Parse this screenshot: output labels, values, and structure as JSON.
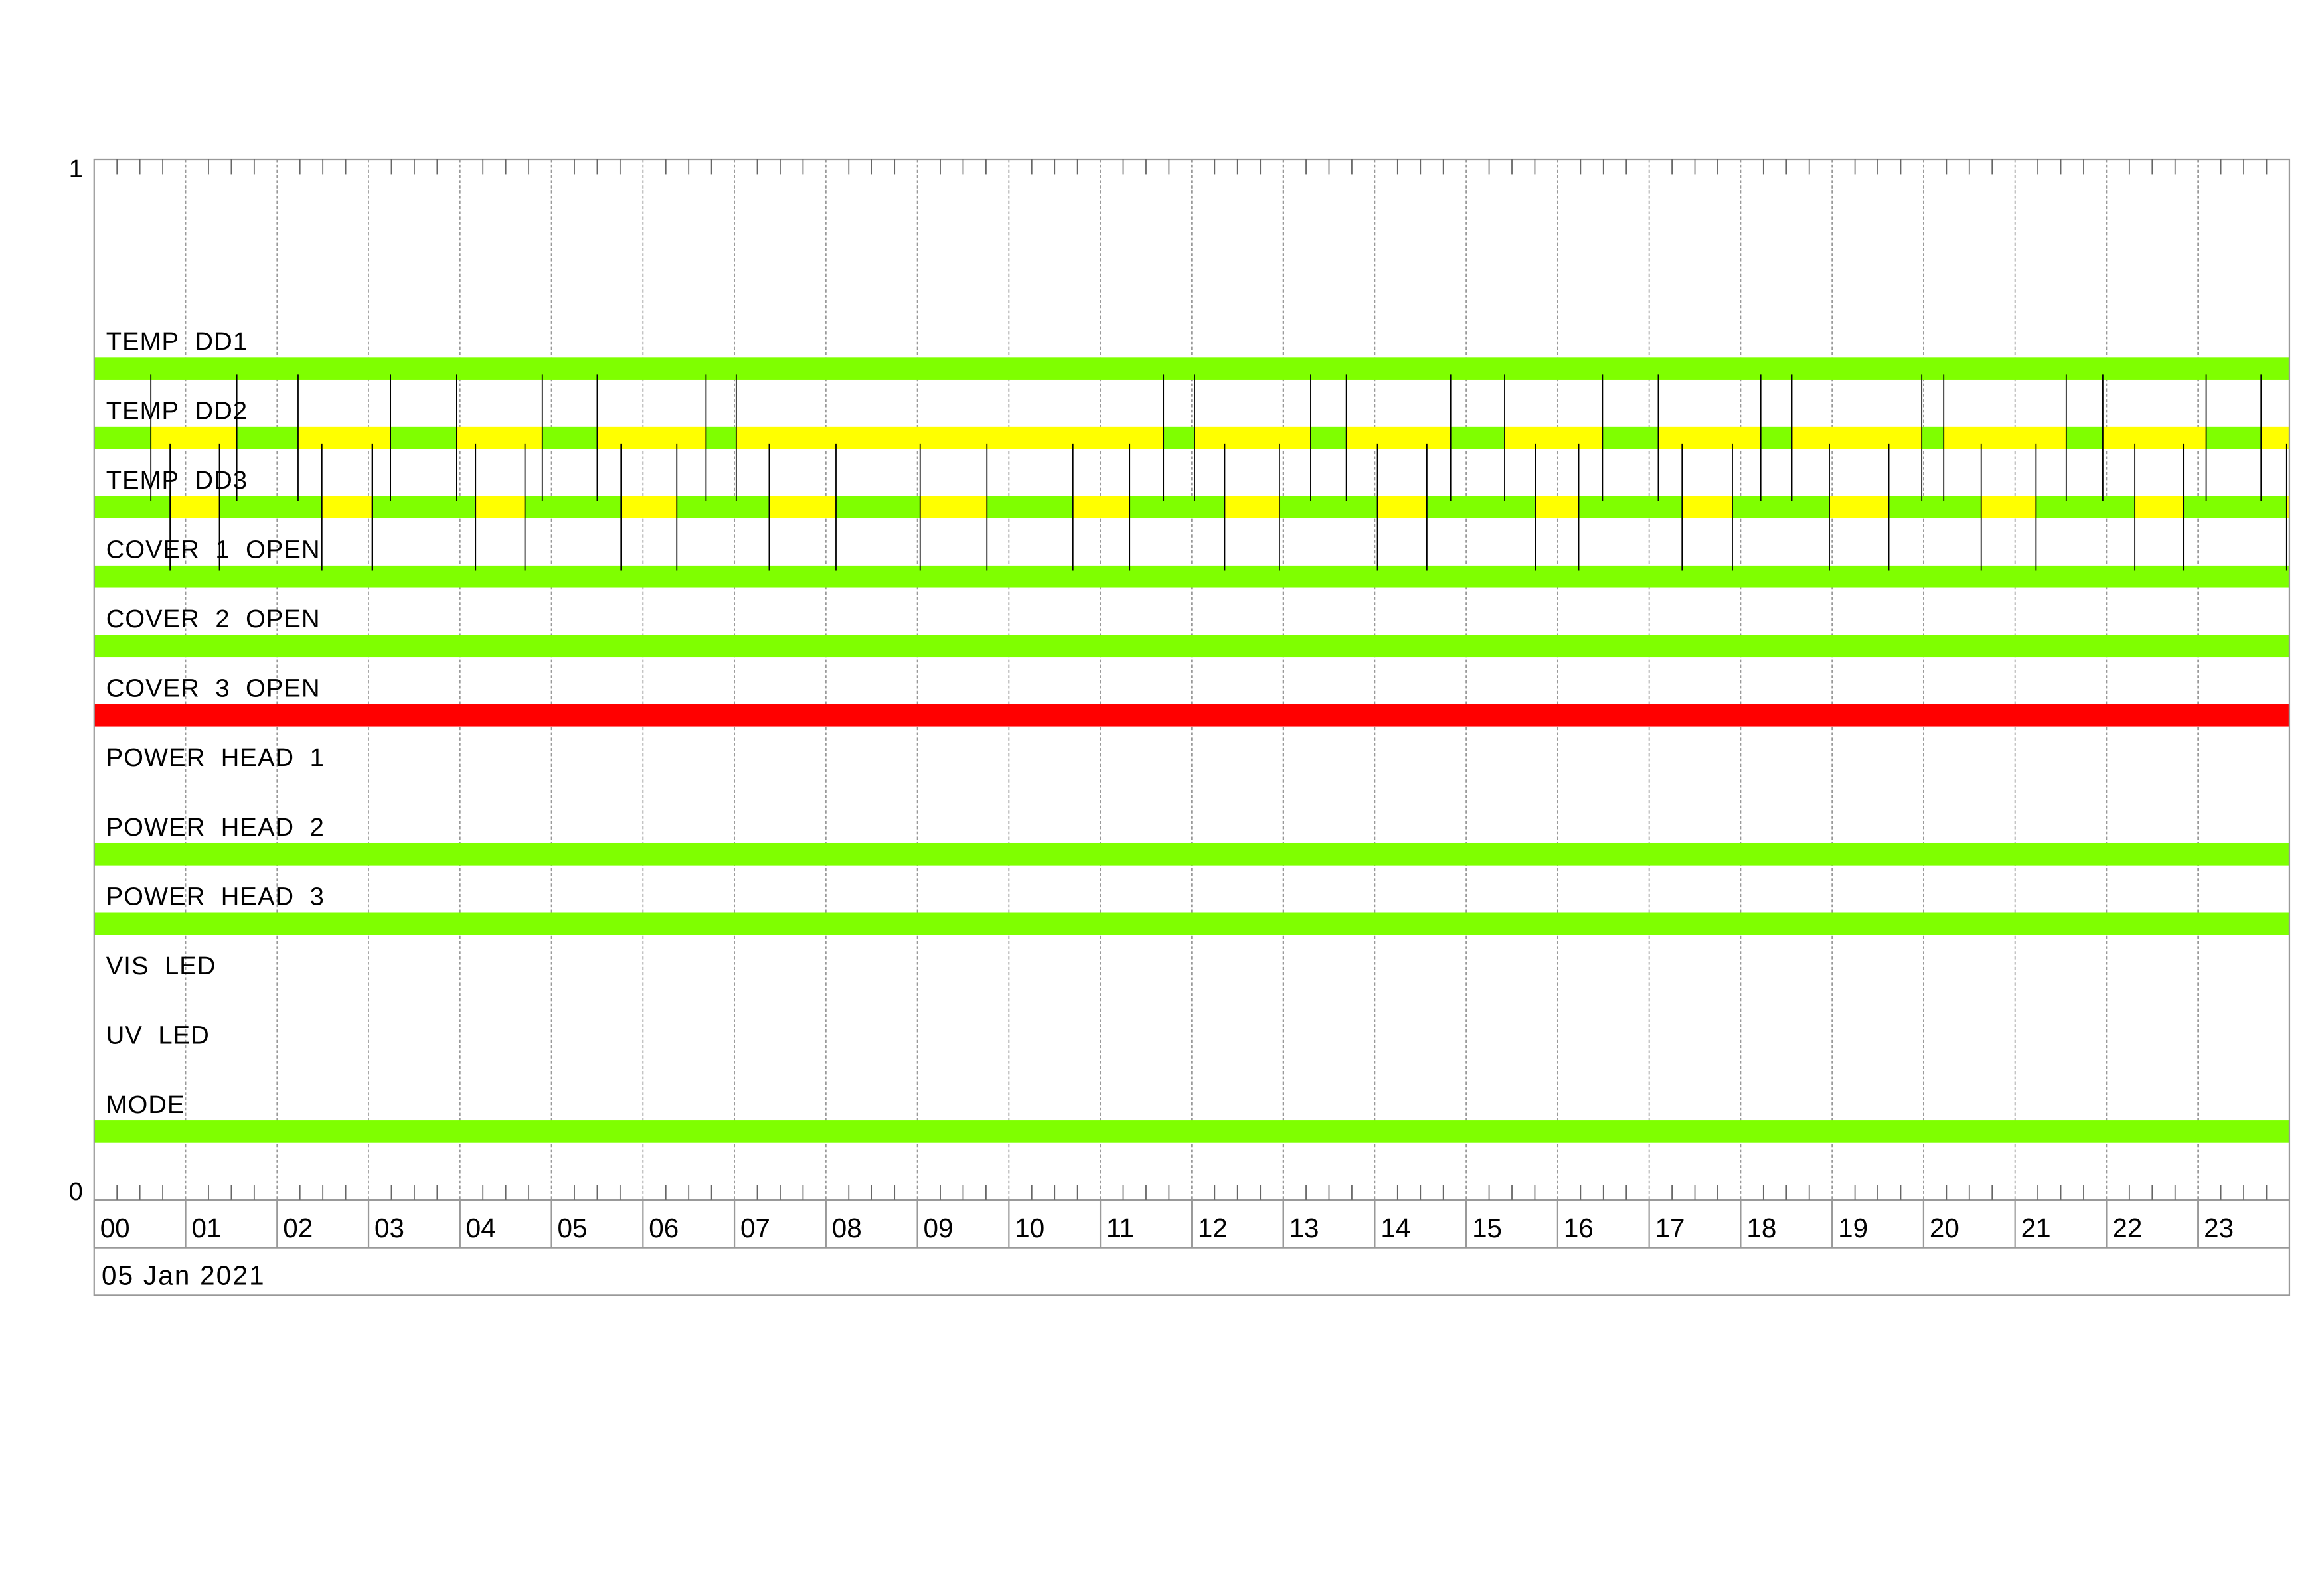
{
  "chart_data": {
    "type": "timeline",
    "y_axis": {
      "top_label": "1",
      "bottom_label": "0"
    },
    "x_axis": {
      "unit": "hour",
      "range": [
        0,
        24
      ],
      "tick_labels": [
        "00",
        "01",
        "02",
        "03",
        "04",
        "05",
        "06",
        "07",
        "08",
        "09",
        "10",
        "11",
        "12",
        "13",
        "14",
        "15",
        "16",
        "17",
        "18",
        "19",
        "20",
        "21",
        "22",
        "23"
      ],
      "minor_ticks_per_hour": 4,
      "date_label": "05 Jan 2021"
    },
    "grid": true,
    "colors": {
      "green": "#7fff00",
      "yellow": "#ffff00",
      "red": "#ff0000",
      "grid": "#999999"
    },
    "rows": [
      {
        "name": "TEMP DD1",
        "segments": [
          {
            "start": 0,
            "end": 24,
            "state": "green"
          }
        ]
      },
      {
        "name": "TEMP DD2",
        "transition_marks": true,
        "segments": [
          {
            "start": 0,
            "end": 0.62,
            "state": "green"
          },
          {
            "start": 0.62,
            "end": 1.56,
            "state": "yellow"
          },
          {
            "start": 1.56,
            "end": 2.23,
            "state": "green"
          },
          {
            "start": 2.23,
            "end": 3.24,
            "state": "yellow"
          },
          {
            "start": 3.24,
            "end": 3.96,
            "state": "green"
          },
          {
            "start": 3.96,
            "end": 4.9,
            "state": "yellow"
          },
          {
            "start": 4.9,
            "end": 5.5,
            "state": "green"
          },
          {
            "start": 5.5,
            "end": 6.69,
            "state": "yellow"
          },
          {
            "start": 6.69,
            "end": 7.02,
            "state": "green"
          },
          {
            "start": 7.02,
            "end": 11.69,
            "state": "yellow"
          },
          {
            "start": 11.69,
            "end": 12.03,
            "state": "green"
          },
          {
            "start": 12.03,
            "end": 13.3,
            "state": "yellow"
          },
          {
            "start": 13.3,
            "end": 13.69,
            "state": "green"
          },
          {
            "start": 13.69,
            "end": 14.83,
            "state": "yellow"
          },
          {
            "start": 14.83,
            "end": 15.42,
            "state": "green"
          },
          {
            "start": 15.42,
            "end": 16.49,
            "state": "yellow"
          },
          {
            "start": 16.49,
            "end": 17.1,
            "state": "green"
          },
          {
            "start": 17.1,
            "end": 18.22,
            "state": "yellow"
          },
          {
            "start": 18.22,
            "end": 18.56,
            "state": "green"
          },
          {
            "start": 18.56,
            "end": 19.98,
            "state": "yellow"
          },
          {
            "start": 19.98,
            "end": 20.22,
            "state": "green"
          },
          {
            "start": 20.22,
            "end": 21.56,
            "state": "yellow"
          },
          {
            "start": 21.56,
            "end": 21.96,
            "state": "green"
          },
          {
            "start": 21.96,
            "end": 23.09,
            "state": "yellow"
          },
          {
            "start": 23.09,
            "end": 23.69,
            "state": "green"
          },
          {
            "start": 23.69,
            "end": 24,
            "state": "yellow"
          }
        ]
      },
      {
        "name": "TEMP DD3",
        "transition_marks": true,
        "segments": [
          {
            "start": 0,
            "end": 0.83,
            "state": "green"
          },
          {
            "start": 0.83,
            "end": 1.37,
            "state": "yellow"
          },
          {
            "start": 1.37,
            "end": 2.49,
            "state": "green"
          },
          {
            "start": 2.49,
            "end": 3.04,
            "state": "yellow"
          },
          {
            "start": 3.04,
            "end": 4.17,
            "state": "green"
          },
          {
            "start": 4.17,
            "end": 4.71,
            "state": "yellow"
          },
          {
            "start": 4.71,
            "end": 5.76,
            "state": "green"
          },
          {
            "start": 5.76,
            "end": 6.37,
            "state": "yellow"
          },
          {
            "start": 6.37,
            "end": 7.38,
            "state": "green"
          },
          {
            "start": 7.38,
            "end": 8.11,
            "state": "yellow"
          },
          {
            "start": 8.11,
            "end": 9.03,
            "state": "green"
          },
          {
            "start": 9.03,
            "end": 9.76,
            "state": "yellow"
          },
          {
            "start": 9.76,
            "end": 10.7,
            "state": "green"
          },
          {
            "start": 10.7,
            "end": 11.32,
            "state": "yellow"
          },
          {
            "start": 11.32,
            "end": 12.36,
            "state": "green"
          },
          {
            "start": 12.36,
            "end": 12.96,
            "state": "yellow"
          },
          {
            "start": 12.96,
            "end": 14.03,
            "state": "green"
          },
          {
            "start": 14.03,
            "end": 14.57,
            "state": "yellow"
          },
          {
            "start": 14.57,
            "end": 15.76,
            "state": "green"
          },
          {
            "start": 15.76,
            "end": 16.23,
            "state": "yellow"
          },
          {
            "start": 16.23,
            "end": 17.36,
            "state": "green"
          },
          {
            "start": 17.36,
            "end": 17.91,
            "state": "yellow"
          },
          {
            "start": 17.91,
            "end": 18.97,
            "state": "green"
          },
          {
            "start": 18.97,
            "end": 19.62,
            "state": "yellow"
          },
          {
            "start": 19.62,
            "end": 20.63,
            "state": "green"
          },
          {
            "start": 20.63,
            "end": 21.23,
            "state": "yellow"
          },
          {
            "start": 21.23,
            "end": 22.31,
            "state": "green"
          },
          {
            "start": 22.31,
            "end": 22.84,
            "state": "yellow"
          },
          {
            "start": 22.84,
            "end": 23.97,
            "state": "green"
          },
          {
            "start": 23.97,
            "end": 24,
            "state": "yellow"
          }
        ]
      },
      {
        "name": "COVER 1 OPEN",
        "segments": [
          {
            "start": 0,
            "end": 24,
            "state": "green"
          }
        ]
      },
      {
        "name": "COVER 2 OPEN",
        "segments": [
          {
            "start": 0,
            "end": 24,
            "state": "green"
          }
        ]
      },
      {
        "name": "COVER 3 OPEN",
        "segments": [
          {
            "start": 0,
            "end": 24,
            "state": "red"
          }
        ]
      },
      {
        "name": "POWER HEAD 1",
        "segments": []
      },
      {
        "name": "POWER HEAD 2",
        "segments": [
          {
            "start": 0,
            "end": 24,
            "state": "green"
          }
        ]
      },
      {
        "name": "POWER HEAD 3",
        "segments": [
          {
            "start": 0,
            "end": 24,
            "state": "green"
          }
        ]
      },
      {
        "name": "VIS LED",
        "segments": []
      },
      {
        "name": "UV LED",
        "segments": []
      },
      {
        "name": "MODE",
        "segments": [
          {
            "start": 0,
            "end": 24,
            "state": "green"
          }
        ]
      }
    ]
  }
}
